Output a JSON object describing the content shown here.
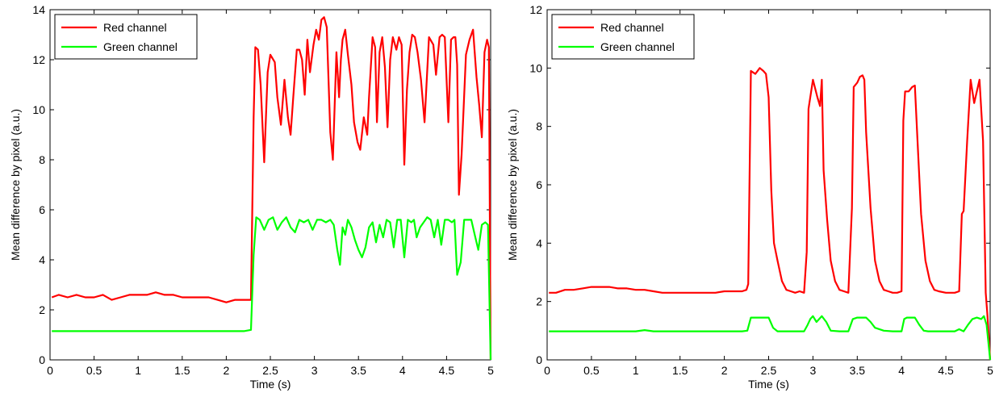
{
  "chart_data": [
    {
      "type": "line",
      "xlabel": "Time (s)",
      "ylabel": "Mean difference by pixel (a.u.)",
      "xlim": [
        0,
        5
      ],
      "ylim": [
        0,
        14
      ],
      "xticks": [
        0,
        0.5,
        1,
        1.5,
        2,
        2.5,
        3,
        3.5,
        4,
        4.5,
        5
      ],
      "xtick_labels": [
        "0",
        "0.5",
        "1",
        "1.5",
        "2",
        "2.5",
        "3",
        "3.5",
        "4",
        "4.5",
        "5"
      ],
      "yticks": [
        0,
        2,
        4,
        6,
        8,
        10,
        12,
        14
      ],
      "ytick_labels": [
        "0",
        "2",
        "4",
        "6",
        "8",
        "10",
        "12",
        "14"
      ],
      "grid": false,
      "legend_position": "top-left",
      "series": [
        {
          "name": "Red channel",
          "color": "#ff0000",
          "x": [
            0.02,
            0.1,
            0.2,
            0.3,
            0.4,
            0.5,
            0.6,
            0.7,
            0.8,
            0.9,
            1.0,
            1.1,
            1.2,
            1.3,
            1.4,
            1.5,
            1.6,
            1.7,
            1.8,
            1.9,
            2.0,
            2.1,
            2.2,
            2.28,
            2.31,
            2.33,
            2.36,
            2.39,
            2.43,
            2.47,
            2.5,
            2.55,
            2.58,
            2.62,
            2.66,
            2.7,
            2.73,
            2.76,
            2.8,
            2.83,
            2.86,
            2.89,
            2.92,
            2.95,
            2.99,
            3.02,
            3.05,
            3.08,
            3.11,
            3.14,
            3.18,
            3.21,
            3.25,
            3.28,
            3.3,
            3.32,
            3.35,
            3.38,
            3.42,
            3.45,
            3.49,
            3.52,
            3.56,
            3.6,
            3.62,
            3.66,
            3.69,
            3.71,
            3.74,
            3.77,
            3.8,
            3.83,
            3.86,
            3.89,
            3.93,
            3.96,
            3.99,
            4.02,
            4.05,
            4.08,
            4.11,
            4.14,
            4.17,
            4.21,
            4.25,
            4.3,
            4.35,
            4.38,
            4.42,
            4.45,
            4.48,
            4.52,
            4.55,
            4.58,
            4.6,
            4.62,
            4.64,
            4.67,
            4.72,
            4.76,
            4.8,
            4.84,
            4.87,
            4.9,
            4.93,
            4.96,
            4.98,
            5.0
          ],
          "y": [
            2.5,
            2.6,
            2.5,
            2.6,
            2.5,
            2.5,
            2.6,
            2.4,
            2.5,
            2.6,
            2.6,
            2.6,
            2.7,
            2.6,
            2.6,
            2.5,
            2.5,
            2.5,
            2.5,
            2.4,
            2.3,
            2.4,
            2.4,
            2.4,
            9.7,
            12.5,
            12.4,
            11.0,
            7.9,
            11.5,
            12.2,
            11.9,
            10.5,
            9.4,
            11.2,
            9.7,
            9.0,
            10.5,
            12.4,
            12.4,
            12.0,
            10.6,
            12.8,
            11.5,
            12.6,
            13.2,
            12.8,
            13.6,
            13.7,
            13.3,
            9.1,
            8.0,
            12.3,
            10.5,
            12.0,
            12.8,
            13.2,
            12.2,
            11.0,
            9.5,
            8.7,
            8.4,
            9.7,
            9.0,
            10.5,
            12.9,
            12.5,
            9.5,
            12.3,
            12.9,
            11.7,
            9.3,
            12.0,
            12.9,
            12.4,
            12.9,
            12.6,
            7.8,
            10.8,
            12.3,
            13.0,
            12.9,
            12.3,
            11.2,
            9.5,
            12.9,
            12.6,
            11.4,
            12.9,
            13.0,
            12.9,
            9.5,
            12.8,
            12.9,
            12.9,
            11.8,
            6.6,
            8.2,
            12.2,
            12.8,
            13.2,
            11.3,
            10.2,
            8.9,
            12.3,
            12.8,
            12.5,
            0.0
          ]
        },
        {
          "name": "Green channel",
          "color": "#00ff00",
          "x": [
            0.02,
            0.1,
            0.2,
            0.3,
            0.4,
            0.5,
            0.6,
            0.7,
            0.8,
            0.9,
            1.0,
            1.1,
            1.2,
            1.3,
            1.4,
            1.5,
            1.6,
            1.7,
            1.8,
            1.9,
            2.0,
            2.1,
            2.2,
            2.28,
            2.31,
            2.34,
            2.38,
            2.43,
            2.48,
            2.53,
            2.58,
            2.63,
            2.68,
            2.73,
            2.78,
            2.83,
            2.88,
            2.93,
            2.98,
            3.03,
            3.08,
            3.13,
            3.18,
            3.22,
            3.26,
            3.29,
            3.32,
            3.35,
            3.38,
            3.42,
            3.46,
            3.5,
            3.54,
            3.58,
            3.62,
            3.66,
            3.7,
            3.74,
            3.78,
            3.82,
            3.86,
            3.9,
            3.94,
            3.98,
            4.02,
            4.06,
            4.1,
            4.13,
            4.16,
            4.2,
            4.24,
            4.28,
            4.32,
            4.36,
            4.4,
            4.44,
            4.48,
            4.52,
            4.56,
            4.59,
            4.62,
            4.66,
            4.7,
            4.74,
            4.78,
            4.82,
            4.86,
            4.9,
            4.94,
            4.97,
            5.0
          ],
          "y": [
            1.15,
            1.15,
            1.15,
            1.15,
            1.15,
            1.15,
            1.15,
            1.15,
            1.15,
            1.15,
            1.15,
            1.15,
            1.15,
            1.15,
            1.15,
            1.15,
            1.15,
            1.15,
            1.15,
            1.15,
            1.15,
            1.15,
            1.15,
            1.2,
            4.2,
            5.7,
            5.6,
            5.2,
            5.6,
            5.7,
            5.2,
            5.5,
            5.7,
            5.3,
            5.1,
            5.6,
            5.5,
            5.6,
            5.2,
            5.6,
            5.6,
            5.5,
            5.6,
            5.4,
            4.4,
            3.8,
            5.3,
            5.0,
            5.6,
            5.3,
            4.8,
            4.4,
            4.1,
            4.5,
            5.3,
            5.5,
            4.7,
            5.4,
            4.9,
            5.6,
            5.5,
            4.5,
            5.6,
            5.6,
            4.1,
            5.6,
            5.5,
            5.6,
            4.9,
            5.3,
            5.5,
            5.7,
            5.6,
            4.9,
            5.6,
            4.6,
            5.6,
            5.6,
            5.5,
            5.6,
            3.4,
            3.9,
            5.6,
            5.6,
            5.6,
            5.0,
            4.4,
            5.4,
            5.5,
            5.4,
            0.0
          ]
        }
      ]
    },
    {
      "type": "line",
      "xlabel": "Time (s)",
      "ylabel": "Mean difference by pixel (a.u.)",
      "xlim": [
        0,
        5
      ],
      "ylim": [
        0,
        12
      ],
      "xticks": [
        0,
        0.5,
        1,
        1.5,
        2,
        2.5,
        3,
        3.5,
        4,
        4.5,
        5
      ],
      "xtick_labels": [
        "0",
        "0.5",
        "1",
        "1.5",
        "2",
        "2.5",
        "3",
        "3.5",
        "4",
        "4.5",
        "5"
      ],
      "yticks": [
        0,
        2,
        4,
        6,
        8,
        10,
        12
      ],
      "ytick_labels": [
        "0",
        "2",
        "4",
        "6",
        "8",
        "10",
        "12"
      ],
      "grid": false,
      "legend_position": "top-left",
      "series": [
        {
          "name": "Red channel",
          "color": "#ff0000",
          "x": [
            0.02,
            0.1,
            0.2,
            0.3,
            0.4,
            0.5,
            0.6,
            0.7,
            0.8,
            0.9,
            1.0,
            1.1,
            1.2,
            1.3,
            1.4,
            1.5,
            1.6,
            1.7,
            1.8,
            1.9,
            2.0,
            2.1,
            2.2,
            2.25,
            2.27,
            2.3,
            2.35,
            2.4,
            2.44,
            2.47,
            2.5,
            2.53,
            2.56,
            2.6,
            2.65,
            2.7,
            2.75,
            2.8,
            2.85,
            2.9,
            2.93,
            2.95,
            3.0,
            3.05,
            3.08,
            3.1,
            3.12,
            3.16,
            3.2,
            3.25,
            3.3,
            3.35,
            3.4,
            3.44,
            3.46,
            3.5,
            3.53,
            3.56,
            3.58,
            3.6,
            3.65,
            3.7,
            3.75,
            3.8,
            3.85,
            3.9,
            3.95,
            4.0,
            4.02,
            4.04,
            4.08,
            4.12,
            4.15,
            4.18,
            4.22,
            4.27,
            4.32,
            4.37,
            4.42,
            4.5,
            4.55,
            4.6,
            4.65,
            4.68,
            4.7,
            4.74,
            4.78,
            4.82,
            4.85,
            4.88,
            4.92,
            4.95,
            4.97,
            5.0
          ],
          "y": [
            2.3,
            2.3,
            2.4,
            2.4,
            2.45,
            2.5,
            2.5,
            2.5,
            2.45,
            2.45,
            2.4,
            2.4,
            2.35,
            2.3,
            2.3,
            2.3,
            2.3,
            2.3,
            2.3,
            2.3,
            2.35,
            2.35,
            2.35,
            2.4,
            2.6,
            9.9,
            9.8,
            10.0,
            9.9,
            9.8,
            9.0,
            5.8,
            4.0,
            3.4,
            2.7,
            2.4,
            2.35,
            2.3,
            2.35,
            2.3,
            3.7,
            8.6,
            9.6,
            9.0,
            8.7,
            9.6,
            6.5,
            4.8,
            3.4,
            2.7,
            2.4,
            2.35,
            2.3,
            5.2,
            9.35,
            9.5,
            9.7,
            9.75,
            9.6,
            7.8,
            5.2,
            3.4,
            2.7,
            2.4,
            2.35,
            2.3,
            2.3,
            2.35,
            8.2,
            9.2,
            9.2,
            9.35,
            9.4,
            7.5,
            5.0,
            3.4,
            2.7,
            2.4,
            2.35,
            2.3,
            2.3,
            2.3,
            2.35,
            5.0,
            5.1,
            7.5,
            9.6,
            8.8,
            9.2,
            9.6,
            7.5,
            2.3,
            1.5,
            0.0
          ]
        },
        {
          "name": "Green channel",
          "color": "#00ff00",
          "x": [
            0.02,
            0.2,
            0.4,
            0.6,
            0.8,
            1.0,
            1.1,
            1.2,
            1.4,
            1.6,
            1.8,
            2.0,
            2.2,
            2.26,
            2.3,
            2.35,
            2.4,
            2.45,
            2.5,
            2.55,
            2.6,
            2.7,
            2.8,
            2.9,
            2.94,
            2.97,
            3.0,
            3.04,
            3.07,
            3.1,
            3.15,
            3.2,
            3.3,
            3.4,
            3.45,
            3.5,
            3.55,
            3.6,
            3.65,
            3.7,
            3.8,
            3.9,
            4.0,
            4.03,
            4.06,
            4.1,
            4.15,
            4.2,
            4.25,
            4.3,
            4.4,
            4.5,
            4.6,
            4.65,
            4.7,
            4.75,
            4.8,
            4.85,
            4.9,
            4.93,
            4.96,
            5.0
          ],
          "y": [
            0.98,
            0.98,
            0.98,
            0.98,
            0.98,
            0.98,
            1.02,
            0.98,
            0.98,
            0.98,
            0.98,
            0.98,
            0.98,
            1.0,
            1.45,
            1.45,
            1.45,
            1.45,
            1.45,
            1.1,
            0.98,
            0.98,
            0.98,
            0.98,
            1.2,
            1.4,
            1.5,
            1.3,
            1.4,
            1.5,
            1.3,
            1.0,
            0.98,
            0.98,
            1.4,
            1.45,
            1.45,
            1.45,
            1.3,
            1.1,
            1.0,
            0.98,
            0.98,
            1.4,
            1.45,
            1.45,
            1.45,
            1.2,
            1.0,
            0.98,
            0.98,
            0.98,
            0.98,
            1.05,
            0.98,
            1.2,
            1.4,
            1.45,
            1.4,
            1.5,
            1.2,
            0.0
          ]
        }
      ]
    }
  ]
}
